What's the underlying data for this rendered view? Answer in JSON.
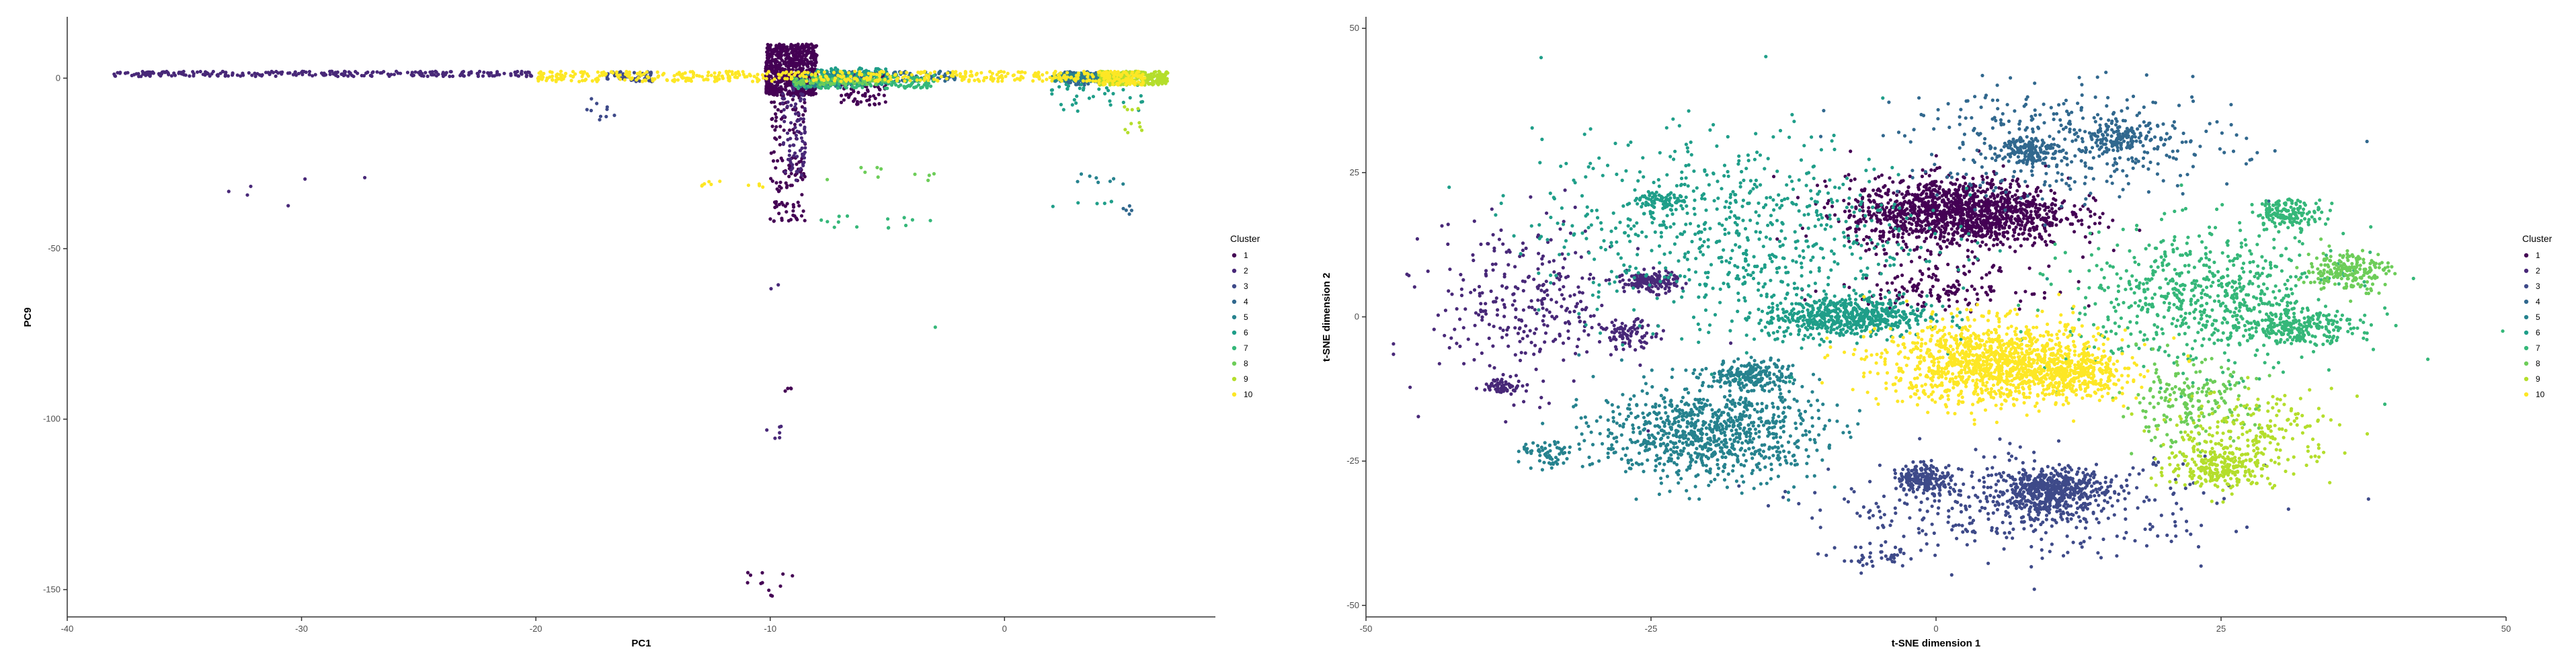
{
  "chart_data": [
    {
      "type": "scatter",
      "xlabel": "PC1",
      "ylabel": "PC9",
      "xlim": [
        -40,
        9
      ],
      "ylim": [
        -158,
        18
      ],
      "xticks": [
        -40,
        -30,
        -20,
        -10,
        0
      ],
      "yticks": [
        0,
        -50,
        -100,
        -150
      ],
      "legend": {
        "title": "Cluster",
        "placement": "right",
        "labels": [
          "1",
          "2",
          "3",
          "4",
          "5",
          "6",
          "7",
          "8",
          "9",
          "10"
        ]
      },
      "colors": [
        "#440154",
        "#482878",
        "#3E4A89",
        "#31688E",
        "#26828E",
        "#1F9E89",
        "#35B779",
        "#6DCD59",
        "#B4DE2C",
        "#FDE725"
      ],
      "point_groups": [
        {
          "cluster": 1,
          "x": [
            -10.2,
            -8.0
          ],
          "y": [
            -5,
            10
          ],
          "n": 700
        },
        {
          "cluster": 1,
          "x": [
            -10,
            -8.5
          ],
          "y": [
            -42,
            -2
          ],
          "n": 140
        },
        {
          "cluster": 1,
          "x": [
            -7,
            -5
          ],
          "y": [
            -8,
            2
          ],
          "n": 90
        },
        {
          "cluster": 1,
          "x": [
            -11,
            -9
          ],
          "y": [
            -152,
            -144
          ],
          "n": 12
        },
        {
          "cluster": 1,
          "x": [
            -9.4,
            -9.0
          ],
          "y": [
            -92,
            -90
          ],
          "n": 4
        },
        {
          "cluster": 2,
          "x": [
            -38,
            -20
          ],
          "y": [
            0.5,
            2
          ],
          "n": 260
        },
        {
          "cluster": 2,
          "x": [
            -9.5,
            -8.5
          ],
          "y": [
            -30,
            -2
          ],
          "n": 80
        },
        {
          "cluster": 2,
          "x": [
            -10.2,
            -9.5
          ],
          "y": [
            -106,
            -102
          ],
          "n": 6
        },
        {
          "cluster": 2,
          "x": [
            -34,
            -27
          ],
          "y": [
            -42,
            -28
          ],
          "n": 6
        },
        {
          "cluster": 2,
          "x": [
            -10,
            -9.5
          ],
          "y": [
            -62,
            -60
          ],
          "n": 2
        },
        {
          "cluster": 3,
          "x": [
            -17,
            -15
          ],
          "y": [
            -1,
            2
          ],
          "n": 60
        },
        {
          "cluster": 3,
          "x": [
            -8,
            -6
          ],
          "y": [
            -2,
            1
          ],
          "n": 90
        },
        {
          "cluster": 3,
          "x": [
            -18,
            -16
          ],
          "y": [
            -16,
            -6
          ],
          "n": 10
        },
        {
          "cluster": 4,
          "x": [
            -7.5,
            -2
          ],
          "y": [
            -1,
            2
          ],
          "n": 120
        },
        {
          "cluster": 4,
          "x": [
            2.5,
            4
          ],
          "y": [
            -2,
            2
          ],
          "n": 60
        },
        {
          "cluster": 4,
          "x": [
            5,
            6
          ],
          "y": [
            -40,
            -37
          ],
          "n": 5
        },
        {
          "cluster": 5,
          "x": [
            -9,
            -7
          ],
          "y": [
            -3,
            2
          ],
          "n": 90
        },
        {
          "cluster": 5,
          "x": [
            2,
            5
          ],
          "y": [
            -1,
            1.5
          ],
          "n": 120
        },
        {
          "cluster": 5,
          "x": [
            3,
            6
          ],
          "y": [
            -32,
            -28
          ],
          "n": 8
        },
        {
          "cluster": 6,
          "x": [
            -8,
            -5
          ],
          "y": [
            -2,
            3
          ],
          "n": 120
        },
        {
          "cluster": 6,
          "x": [
            2,
            6
          ],
          "y": [
            -10,
            0
          ],
          "n": 40
        },
        {
          "cluster": 6,
          "x": [
            2,
            5
          ],
          "y": [
            -38,
            -36
          ],
          "n": 6
        },
        {
          "cluster": 7,
          "x": [
            -9,
            -3
          ],
          "y": [
            -3,
            1
          ],
          "n": 150
        },
        {
          "cluster": 7,
          "x": [
            -8,
            -3
          ],
          "y": [
            -44,
            -40
          ],
          "n": 14
        },
        {
          "cluster": 7,
          "x": [
            -3,
            -2.8
          ],
          "y": [
            -74,
            -72
          ],
          "n": 1
        },
        {
          "cluster": 8,
          "x": [
            -9,
            -5
          ],
          "y": [
            -2,
            0
          ],
          "n": 80
        },
        {
          "cluster": 8,
          "x": [
            -8,
            -3
          ],
          "y": [
            -30,
            -26
          ],
          "n": 10
        },
        {
          "cluster": 9,
          "x": [
            4,
            7
          ],
          "y": [
            -2,
            2
          ],
          "n": 240
        },
        {
          "cluster": 9,
          "x": [
            5,
            6
          ],
          "y": [
            -16,
            -7
          ],
          "n": 10
        },
        {
          "cluster": 10,
          "x": [
            -20,
            4
          ],
          "y": [
            -1,
            2
          ],
          "n": 460
        },
        {
          "cluster": 10,
          "x": [
            -13,
            -10
          ],
          "y": [
            -32,
            -30
          ],
          "n": 10
        },
        {
          "cluster": 10,
          "x": [
            4,
            6
          ],
          "y": [
            -2,
            2
          ],
          "n": 100
        }
      ]
    },
    {
      "type": "scatter",
      "xlabel": "t-SNE dimension 1",
      "ylabel": "t-SNE dimension 2",
      "xlim": [
        -50,
        50
      ],
      "ylim": [
        -52,
        52
      ],
      "xticks": [
        -50,
        -25,
        0,
        25,
        50
      ],
      "yticks": [
        50,
        25,
        0,
        -25,
        -50
      ],
      "legend": {
        "title": "Cluster",
        "placement": "right",
        "labels": [
          "1",
          "2",
          "3",
          "4",
          "5",
          "6",
          "7",
          "8",
          "9",
          "10"
        ]
      },
      "colors": [
        "#440154",
        "#482878",
        "#3E4A89",
        "#31688E",
        "#26828E",
        "#1F9E89",
        "#35B779",
        "#6DCD59",
        "#B4DE2C",
        "#FDE725"
      ],
      "point_groups": [
        {
          "cluster": 1,
          "cx": 2,
          "cy": 18,
          "sx": 8,
          "sy": 5,
          "n": 1400
        },
        {
          "cluster": 1,
          "cx": 0,
          "cy": 5,
          "sx": 7,
          "sy": 3,
          "n": 150
        },
        {
          "cluster": 2,
          "cx": -36,
          "cy": 2,
          "sx": 7,
          "sy": 12,
          "n": 300
        },
        {
          "cluster": 2,
          "cx": -25,
          "cy": 6,
          "sx": 2,
          "sy": 1.5,
          "n": 150
        },
        {
          "cluster": 2,
          "cx": -27,
          "cy": -3,
          "sx": 2,
          "sy": 2,
          "n": 90
        },
        {
          "cluster": 2,
          "cx": -38,
          "cy": -12,
          "sx": 1.5,
          "sy": 1,
          "n": 60
        },
        {
          "cluster": 3,
          "cx": -1,
          "cy": -28,
          "sx": 2,
          "sy": 2,
          "n": 200
        },
        {
          "cluster": 3,
          "cx": 10,
          "cy": -30,
          "sx": 4,
          "sy": 3,
          "n": 500
        },
        {
          "cluster": 3,
          "cx": 8,
          "cy": -33,
          "sx": 14,
          "sy": 7,
          "n": 400
        },
        {
          "cluster": 3,
          "cx": -5,
          "cy": -42,
          "sx": 3,
          "sy": 2,
          "n": 40
        },
        {
          "cluster": 4,
          "cx": 12,
          "cy": 30,
          "sx": 12,
          "sy": 8,
          "n": 400
        },
        {
          "cluster": 4,
          "cx": 16,
          "cy": 31,
          "sx": 3,
          "sy": 2,
          "n": 120
        },
        {
          "cluster": 4,
          "cx": 8,
          "cy": 29,
          "sx": 2,
          "sy": 2,
          "n": 120
        },
        {
          "cluster": 5,
          "cx": -20,
          "cy": -20,
          "sx": 8,
          "sy": 7,
          "n": 900
        },
        {
          "cluster": 5,
          "cx": -16,
          "cy": -10,
          "sx": 3,
          "sy": 2,
          "n": 200
        },
        {
          "cluster": 5,
          "cx": -34,
          "cy": -24,
          "sx": 2,
          "sy": 2,
          "n": 60
        },
        {
          "cluster": 6,
          "cx": -8,
          "cy": 0,
          "sx": 6,
          "sy": 3,
          "n": 600
        },
        {
          "cluster": 6,
          "cx": -18,
          "cy": 15,
          "sx": 14,
          "sy": 14,
          "n": 700
        },
        {
          "cluster": 6,
          "cx": -24,
          "cy": 20,
          "sx": 2,
          "sy": 1.5,
          "n": 80
        },
        {
          "cluster": 7,
          "cx": 24,
          "cy": 3,
          "sx": 10,
          "sy": 10,
          "n": 700
        },
        {
          "cluster": 7,
          "cx": 32,
          "cy": -2,
          "sx": 4,
          "sy": 2,
          "n": 200
        },
        {
          "cluster": 7,
          "cx": 31,
          "cy": 18,
          "sx": 2.5,
          "sy": 2,
          "n": 150
        },
        {
          "cluster": 8,
          "cx": 36,
          "cy": 8,
          "sx": 3,
          "sy": 3,
          "n": 200
        },
        {
          "cluster": 8,
          "cx": 22,
          "cy": -15,
          "sx": 5,
          "sy": 6,
          "n": 200
        },
        {
          "cluster": 9,
          "cx": 25,
          "cy": -26,
          "sx": 4,
          "sy": 3,
          "n": 250
        },
        {
          "cluster": 9,
          "cx": 28,
          "cy": -20,
          "sx": 6,
          "sy": 6,
          "n": 200
        },
        {
          "cluster": 10,
          "cx": 5,
          "cy": -8,
          "sx": 8,
          "sy": 6,
          "n": 1200
        },
        {
          "cluster": 10,
          "cx": 12,
          "cy": -10,
          "sx": 4,
          "sy": 3,
          "n": 300
        }
      ]
    }
  ]
}
